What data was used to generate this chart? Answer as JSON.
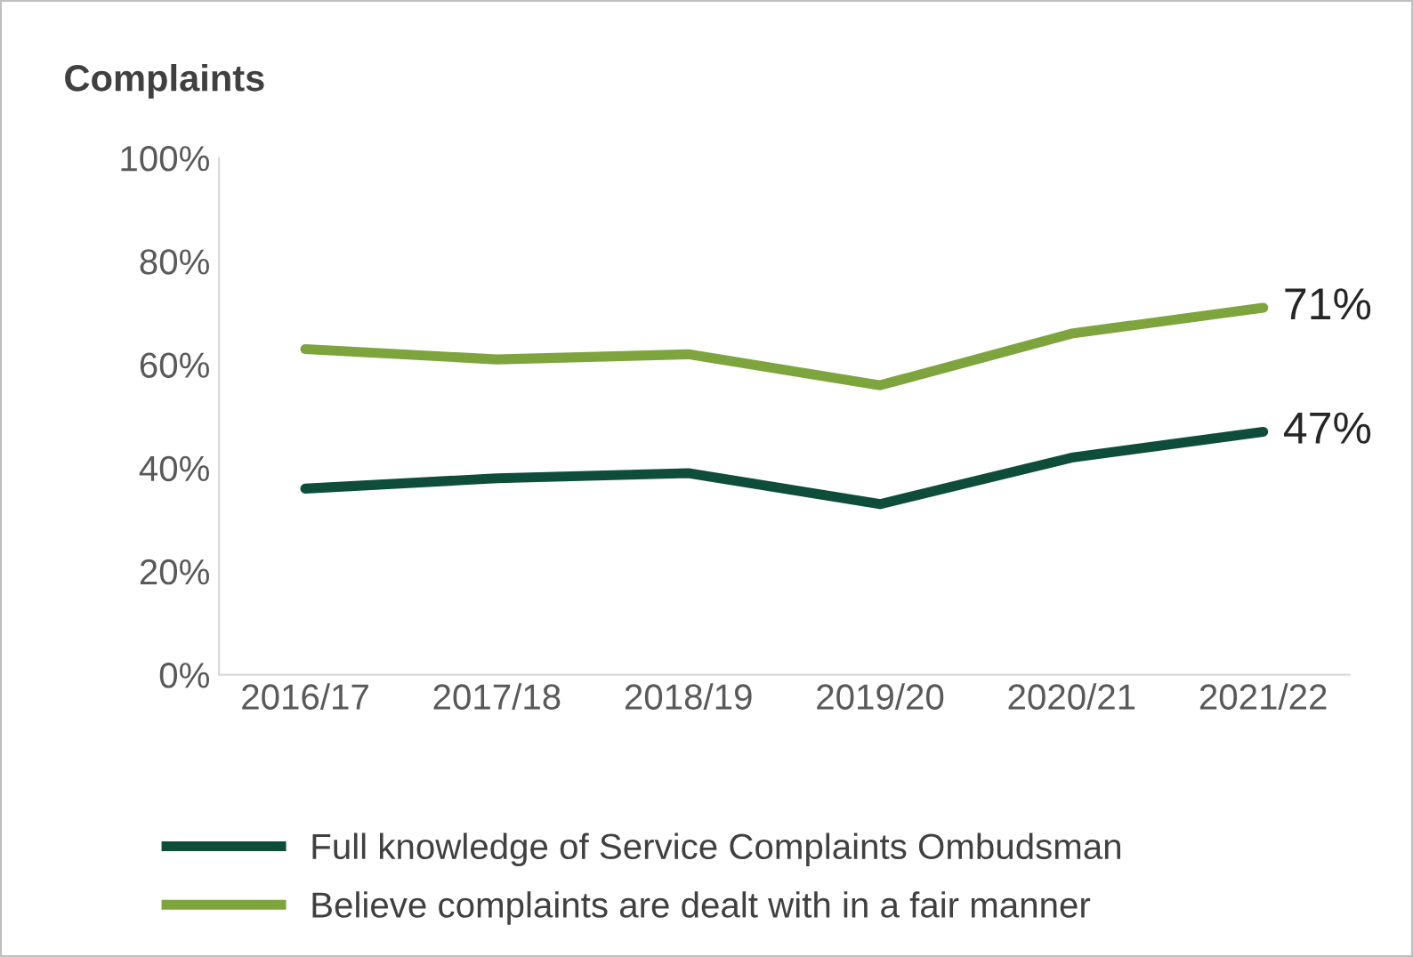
{
  "chart_data": {
    "type": "line",
    "title": "Complaints",
    "categories": [
      "2016/17",
      "2017/18",
      "2018/19",
      "2019/20",
      "2020/21",
      "2021/22"
    ],
    "series": [
      {
        "name": "Full knowledge of Service Complaints Ombudsman",
        "color": "#0e4d3a",
        "values": [
          36,
          38,
          39,
          33,
          42,
          47
        ],
        "value_labels": [
          null,
          null,
          null,
          null,
          null,
          "47%"
        ]
      },
      {
        "name": "Believe complaints are dealt with in a fair manner",
        "color": "#7ea43e",
        "values": [
          63,
          61,
          62,
          56,
          66,
          71
        ],
        "value_labels": [
          null,
          null,
          null,
          null,
          null,
          "71%"
        ]
      }
    ],
    "ylim": [
      0,
      100
    ],
    "yticks": [
      {
        "value": 0,
        "label": "0%"
      },
      {
        "value": 20,
        "label": "20%"
      },
      {
        "value": 40,
        "label": "40%"
      },
      {
        "value": 60,
        "label": "60%"
      },
      {
        "value": 80,
        "label": "80%"
      },
      {
        "value": 100,
        "label": "100%"
      }
    ],
    "grid": false,
    "legend": "bottom",
    "marker": "none",
    "line_style": "solid"
  }
}
